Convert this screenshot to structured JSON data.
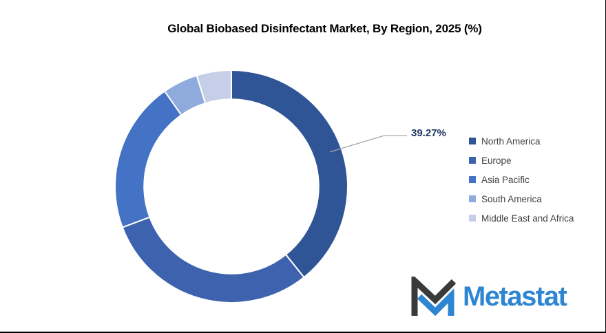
{
  "page": {
    "background": "#ffffff",
    "border_color": "#000000"
  },
  "title": "Global Biobased Disinfectant Market, By Region, 2025 (%)",
  "chart": {
    "data_label": {
      "text": "39.27%",
      "color": "#1F3864",
      "applies_to": "North America"
    },
    "leader_line_color": "#A6A6A6"
  },
  "chart_data": {
    "type": "pie",
    "subtype": "donut",
    "title": "Global Biobased Disinfectant Market, By Region, 2025 (%)",
    "categories": [
      "North America",
      "Europe",
      "Asia Pacific",
      "South America",
      "Middle East and Africa"
    ],
    "values": [
      39.27,
      30.0,
      21.0,
      4.9,
      4.83
    ],
    "unit": "%",
    "colors": [
      "#2F5597",
      "#3D63AE",
      "#4472C4",
      "#8FAADC",
      "#C5CFE8"
    ],
    "shown_data_labels": [
      "39.27%",
      "",
      "",
      "",
      ""
    ],
    "start_angle_deg": 0,
    "direction": "clockwise",
    "hole_ratio": 0.75,
    "legend_position": "right",
    "grid": false
  },
  "legend": {
    "items": [
      {
        "label": "North America",
        "color": "#2F5597"
      },
      {
        "label": "Europe",
        "color": "#3D63AE"
      },
      {
        "label": "Asia Pacific",
        "color": "#4472C4"
      },
      {
        "label": "South America",
        "color": "#8FAADC"
      },
      {
        "label": "Middle East and Africa",
        "color": "#C5CFE8"
      }
    ]
  },
  "logo": {
    "text": "Metastat",
    "brand_color": "#2E86D3",
    "mark_dark_color": "#3A3A3A"
  }
}
